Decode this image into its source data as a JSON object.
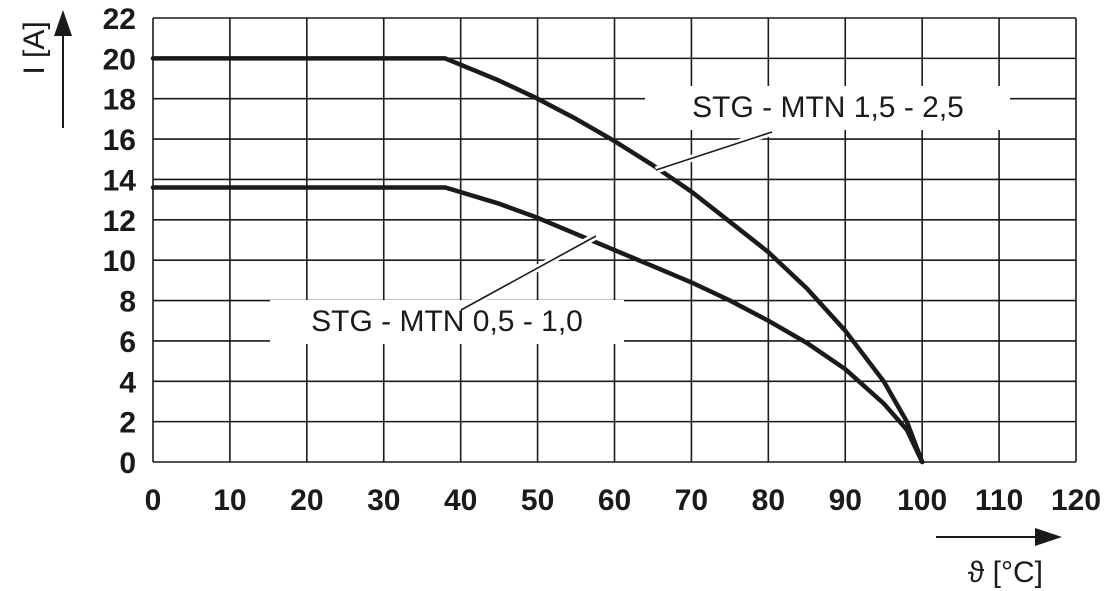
{
  "chart_data": {
    "type": "line",
    "xlabel": "ϑ [°C]",
    "ylabel": "I [A]",
    "xlim": [
      0,
      120
    ],
    "ylim": [
      0,
      22
    ],
    "x_ticks": [
      "0",
      "10",
      "20",
      "30",
      "40",
      "50",
      "60",
      "70",
      "80",
      "90",
      "100",
      "110",
      "120"
    ],
    "y_ticks": [
      "0",
      "2",
      "4",
      "6",
      "8",
      "10",
      "12",
      "14",
      "16",
      "18",
      "20",
      "22"
    ],
    "grid": true,
    "colors": {
      "line": "#1a1a1a",
      "grid": "#1a1a1a",
      "background": "#ffffff"
    },
    "series": [
      {
        "name": "STG - MTN 1,5 - 2,5",
        "x": [
          0,
          38,
          45,
          50,
          55,
          60,
          65,
          70,
          75,
          80,
          85,
          90,
          95,
          98,
          100
        ],
        "y": [
          20,
          20,
          18.9,
          18.0,
          17.0,
          15.9,
          14.7,
          13.4,
          11.9,
          10.4,
          8.6,
          6.5,
          4.0,
          2.0,
          0
        ]
      },
      {
        "name": "STG - MTN 0,5 - 1,0",
        "x": [
          0,
          38,
          45,
          50,
          55,
          60,
          65,
          70,
          75,
          80,
          85,
          90,
          95,
          98,
          100
        ],
        "y": [
          13.6,
          13.6,
          12.8,
          12.1,
          11.3,
          10.5,
          9.7,
          8.9,
          8.0,
          7.0,
          5.9,
          4.6,
          2.9,
          1.6,
          0
        ]
      }
    ]
  }
}
